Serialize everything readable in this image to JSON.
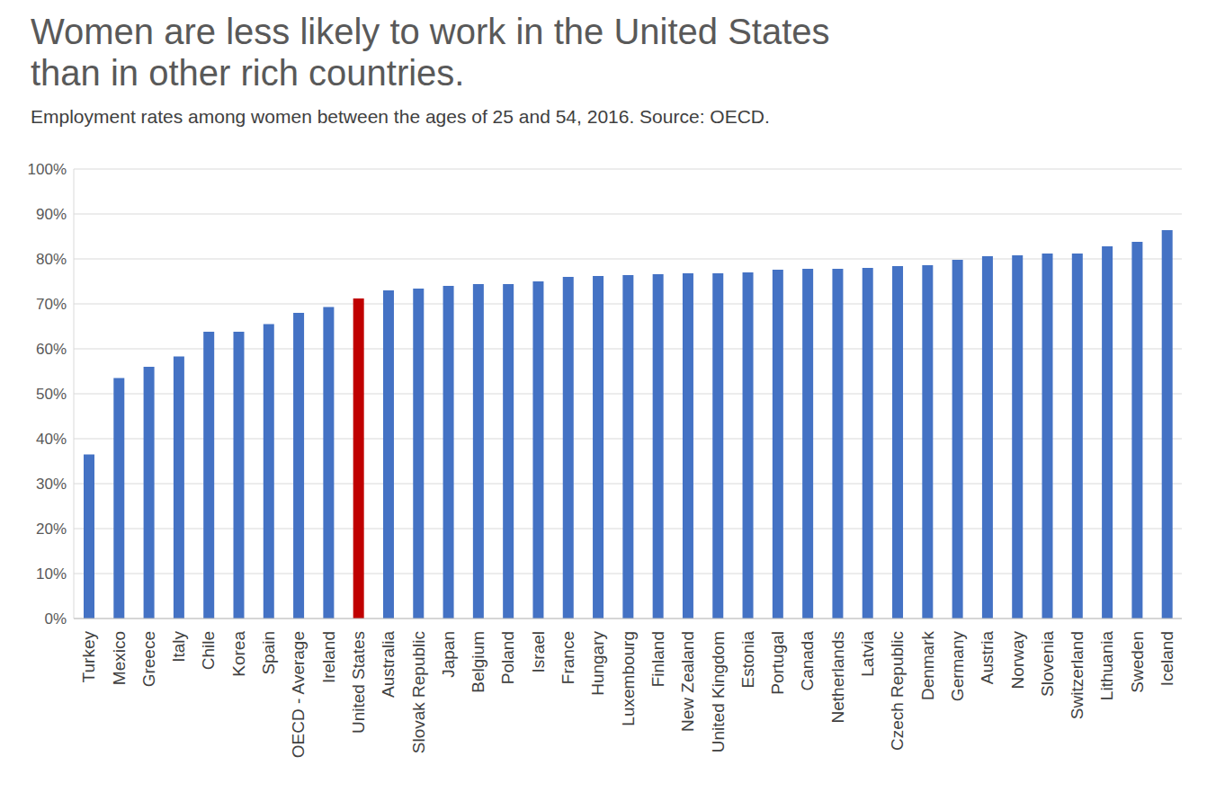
{
  "chart_data": {
    "type": "bar",
    "title": "Women are less likely to work in the United States\nthan in other rich countries.",
    "subtitle": "Employment rates among women between the ages of 25 and 54, 2016. Source:  OECD.",
    "categories": [
      "Turkey",
      "Mexico",
      "Greece",
      "Italy",
      "Chile",
      "Korea",
      "Spain",
      "OECD - Average",
      "Ireland",
      "United States",
      "Australia",
      "Slovak Republic",
      "Japan",
      "Belgium",
      "Poland",
      "Israel",
      "France",
      "Hungary",
      "Luxembourg",
      "Finland",
      "New Zealand",
      "United Kingdom",
      "Estonia",
      "Portugal",
      "Canada",
      "Netherlands",
      "Latvia",
      "Czech Republic",
      "Denmark",
      "Germany",
      "Austria",
      "Norway",
      "Slovenia",
      "Switzerland",
      "Lithuania",
      "Sweden",
      "Iceland"
    ],
    "values": [
      36.5,
      53.5,
      56,
      58.3,
      63.8,
      63.8,
      65.5,
      68,
      69.3,
      71.2,
      73,
      73.4,
      74,
      74.4,
      74.4,
      75,
      76,
      76.2,
      76.4,
      76.6,
      76.8,
      76.8,
      77,
      77.6,
      77.8,
      77.8,
      78,
      78.4,
      78.6,
      79.8,
      80.6,
      80.8,
      81.2,
      81.2,
      82.8,
      83.8,
      86.4
    ],
    "colors": [
      "#4472c4",
      "#4472c4",
      "#4472c4",
      "#4472c4",
      "#4472c4",
      "#4472c4",
      "#4472c4",
      "#4472c4",
      "#4472c4",
      "#c00000",
      "#4472c4",
      "#4472c4",
      "#4472c4",
      "#4472c4",
      "#4472c4",
      "#4472c4",
      "#4472c4",
      "#4472c4",
      "#4472c4",
      "#4472c4",
      "#4472c4",
      "#4472c4",
      "#4472c4",
      "#4472c4",
      "#4472c4",
      "#4472c4",
      "#4472c4",
      "#4472c4",
      "#4472c4",
      "#4472c4",
      "#4472c4",
      "#4472c4",
      "#4472c4",
      "#4472c4",
      "#4472c4",
      "#4472c4",
      "#4472c4"
    ],
    "ylim": [
      0,
      100
    ],
    "yticks": [
      {
        "value": 0,
        "label": "0%"
      },
      {
        "value": 10,
        "label": "10%"
      },
      {
        "value": 20,
        "label": "20%"
      },
      {
        "value": 30,
        "label": "30%"
      },
      {
        "value": 40,
        "label": "40%"
      },
      {
        "value": 50,
        "label": "50%"
      },
      {
        "value": 60,
        "label": "60%"
      },
      {
        "value": 70,
        "label": "70%"
      },
      {
        "value": 80,
        "label": "80%"
      },
      {
        "value": 90,
        "label": "90%"
      },
      {
        "value": 100,
        "label": "100%"
      }
    ],
    "grid": true
  }
}
